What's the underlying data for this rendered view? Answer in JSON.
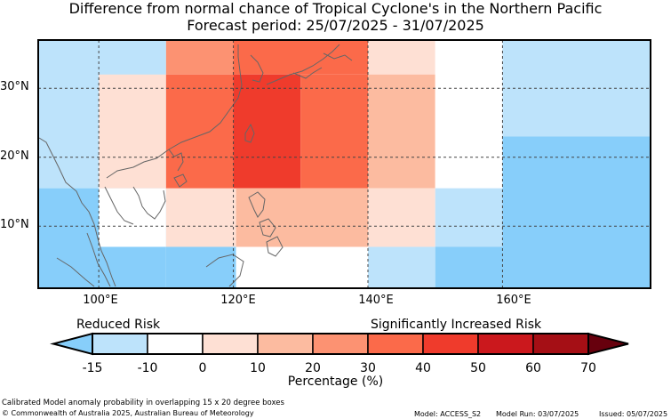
{
  "title": "Difference from normal chance of Tropical Cyclone's in the Northern Pacific",
  "subtitle": "Forecast period: 25/07/2025 - 31/07/2025",
  "lat_labels": [
    "30°N",
    "20°N",
    "10°N"
  ],
  "lon_labels": [
    "100°E",
    "120°E",
    "140°E",
    "160°E"
  ],
  "legend": {
    "reduced_label": "Reduced Risk",
    "increased_label": "Significantly Increased Risk",
    "ticks": [
      "-15",
      "-10",
      "0",
      "10",
      "20",
      "30",
      "40",
      "50",
      "60",
      "70"
    ],
    "axis_label": "Percentage (%)",
    "bins": [
      {
        "from": -15,
        "to": -10,
        "color": "#bde3fb"
      },
      {
        "from": -10,
        "to": 0,
        "color": "#ffffff"
      },
      {
        "from": 0,
        "to": 10,
        "color": "#fee0d4"
      },
      {
        "from": 10,
        "to": 20,
        "color": "#fcbba0"
      },
      {
        "from": 20,
        "to": 30,
        "color": "#fc9272"
      },
      {
        "from": 30,
        "to": 40,
        "color": "#fb6a4a"
      },
      {
        "from": 40,
        "to": 50,
        "color": "#ef3b2c"
      },
      {
        "from": 50,
        "to": 60,
        "color": "#cb181d"
      },
      {
        "from": 60,
        "to": 70,
        "color": "#a50f15"
      }
    ],
    "under_color": "#87cefa",
    "over_color": "#67000d"
  },
  "footer": {
    "description": "Calibrated Model anomaly probability in overlapping 15 x 20 degree boxes",
    "copyright": "© Commonwealth of Australia 2025, Australian Bureau of Meteorology",
    "model": "Model: ACCESS_S2",
    "model_run": "Model Run: 03/07/2025",
    "issued": "Issued: 05/07/2025"
  },
  "map_data": {
    "lon_range": [
      91,
      182
    ],
    "lat_range": [
      1,
      37
    ],
    "cells": [
      {
        "lon": [
          91,
          110
        ],
        "lat": [
          15.5,
          37
        ],
        "color": "#bde3fb"
      },
      {
        "lon": [
          91,
          110
        ],
        "lat": [
          1,
          15.5
        ],
        "color": "#87cefa"
      },
      {
        "lon": [
          100,
          110
        ],
        "lat": [
          7,
          15.5
        ],
        "color": "#ffffff"
      },
      {
        "lon": [
          110,
          120.4
        ],
        "lat": [
          1,
          7
        ],
        "color": "#87cefa"
      },
      {
        "lon": [
          110,
          120.4
        ],
        "lat": [
          7,
          15.5
        ],
        "color": "#fee0d4"
      },
      {
        "lon": [
          100,
          110
        ],
        "lat": [
          15.5,
          32
        ],
        "color": "#fee0d4"
      },
      {
        "lon": [
          110,
          120
        ],
        "lat": [
          32,
          37
        ],
        "color": "#fc9272"
      },
      {
        "lon": [
          120,
          140
        ],
        "lat": [
          32,
          37
        ],
        "color": "#fb6a4a"
      },
      {
        "lon": [
          110,
          120
        ],
        "lat": [
          15.5,
          32
        ],
        "color": "#fb6a4a"
      },
      {
        "lon": [
          120,
          130
        ],
        "lat": [
          15.5,
          32
        ],
        "color": "#ef3b2c"
      },
      {
        "lon": [
          130,
          140
        ],
        "lat": [
          15.5,
          32
        ],
        "color": "#fb6a4a"
      },
      {
        "lon": [
          120.4,
          140
        ],
        "lat": [
          7,
          15.5
        ],
        "color": "#fcbba0"
      },
      {
        "lon": [
          120.4,
          140
        ],
        "lat": [
          1,
          7
        ],
        "color": "#ffffff"
      },
      {
        "lon": [
          140,
          150
        ],
        "lat": [
          32,
          37
        ],
        "color": "#fee0d4"
      },
      {
        "lon": [
          140,
          150
        ],
        "lat": [
          15.5,
          32
        ],
        "color": "#fcbba0"
      },
      {
        "lon": [
          140,
          150
        ],
        "lat": [
          7,
          15.5
        ],
        "color": "#fee0d4"
      },
      {
        "lon": [
          140,
          150
        ],
        "lat": [
          1,
          7
        ],
        "color": "#bde3fb"
      },
      {
        "lon": [
          150,
          160
        ],
        "lat": [
          15.5,
          37
        ],
        "color": "#ffffff"
      },
      {
        "lon": [
          150,
          160
        ],
        "lat": [
          7,
          15.5
        ],
        "color": "#bde3fb"
      },
      {
        "lon": [
          150,
          160
        ],
        "lat": [
          1,
          7
        ],
        "color": "#87cefa"
      },
      {
        "lon": [
          160,
          182
        ],
        "lat": [
          23,
          37
        ],
        "color": "#bde3fb"
      },
      {
        "lon": [
          160,
          182
        ],
        "lat": [
          1,
          23
        ],
        "color": "#87cefa"
      }
    ]
  }
}
